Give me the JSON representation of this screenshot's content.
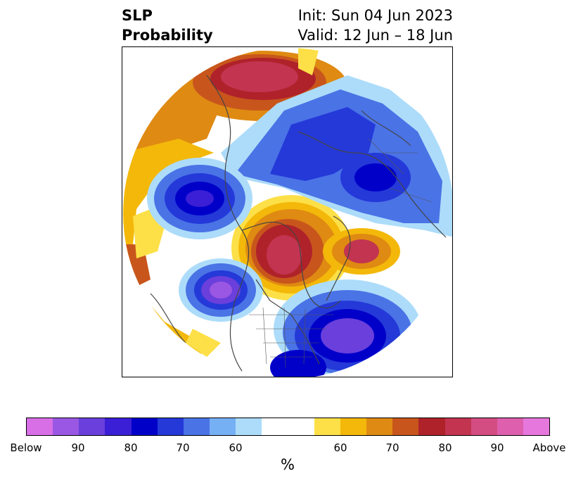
{
  "title": {
    "left_line1": "SLP",
    "left_line2": "Probability",
    "right_line1": "Init: Sun 04 Jun 2023",
    "right_line2": "Valid: 12 Jun – 18 Jun"
  },
  "colorbar": {
    "colors": [
      "#d86fe6",
      "#9a57e3",
      "#6a3fdc",
      "#3a1fd6",
      "#0000c9",
      "#2439d8",
      "#4a73e6",
      "#76b0f4",
      "#acdcfa",
      "#ffffff",
      "#ffffff",
      "#fde047",
      "#f3b80a",
      "#df8a12",
      "#c8561c",
      "#b0222a",
      "#c23450",
      "#d44d82",
      "#dd5fae",
      "#e677dc"
    ],
    "tick_labels": [
      "Below",
      "90",
      "80",
      "70",
      "60",
      "60",
      "70",
      "80",
      "90",
      "Above"
    ],
    "unit_label": "%"
  },
  "map": {
    "projection": "north-polar-stereographic",
    "field": "sea-level-pressure-probability",
    "colors": {
      "above_extreme": "#c23450",
      "above_high": "#b0222a",
      "above_mid": "#c8561c",
      "above_low": "#df8a12",
      "above_min": "#f3b80a",
      "above_edge": "#fde047",
      "below_extreme": "#9a57e3",
      "below_high": "#6a3fdc",
      "below_mid": "#0000c9",
      "below_low": "#2439d8",
      "below_min": "#4a73e6",
      "below_edge": "#acdcfa"
    }
  }
}
